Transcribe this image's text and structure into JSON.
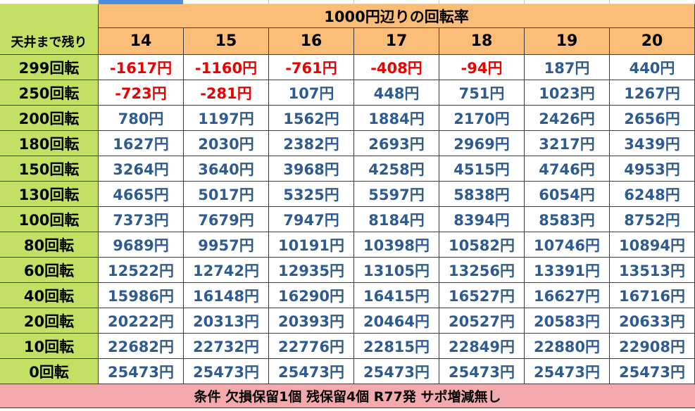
{
  "table": {
    "title": "1000円辺りの回転率",
    "corner_label": "天井まで残り",
    "columns": [
      "14",
      "15",
      "16",
      "17",
      "18",
      "19",
      "20"
    ],
    "rows": [
      {
        "label": "299回転",
        "values": [
          "-1617円",
          "-1160円",
          "-761円",
          "-408円",
          "-94円",
          "187円",
          "440円"
        ]
      },
      {
        "label": "250回転",
        "values": [
          "-723円",
          "-281円",
          "107円",
          "448円",
          "751円",
          "1023円",
          "1267円"
        ]
      },
      {
        "label": "200回転",
        "values": [
          "780円",
          "1197円",
          "1562円",
          "1884円",
          "2170円",
          "2426円",
          "2656円"
        ]
      },
      {
        "label": "180回転",
        "values": [
          "1627円",
          "2030円",
          "2382円",
          "2693円",
          "2969円",
          "3217円",
          "3439円"
        ]
      },
      {
        "label": "150回転",
        "values": [
          "3264円",
          "3640円",
          "3968円",
          "4258円",
          "4515円",
          "4746円",
          "4953円"
        ]
      },
      {
        "label": "130回転",
        "values": [
          "4665円",
          "5017円",
          "5325円",
          "5597円",
          "5838円",
          "6054円",
          "6248円"
        ]
      },
      {
        "label": "100回転",
        "values": [
          "7373円",
          "7679円",
          "7947円",
          "8184円",
          "8394円",
          "8583円",
          "8752円"
        ]
      },
      {
        "label": "80回転",
        "values": [
          "9689円",
          "9957円",
          "10191円",
          "10398円",
          "10582円",
          "10746円",
          "10894円"
        ]
      },
      {
        "label": "60回転",
        "values": [
          "12522円",
          "12742円",
          "12935円",
          "13105円",
          "13256円",
          "13391円",
          "13513円"
        ]
      },
      {
        "label": "40回転",
        "values": [
          "15986円",
          "16148円",
          "16290円",
          "16415円",
          "16527円",
          "16627円",
          "16716円"
        ]
      },
      {
        "label": "20回転",
        "values": [
          "20222円",
          "20313円",
          "20393円",
          "20464円",
          "20527円",
          "20583円",
          "20633円"
        ]
      },
      {
        "label": "10回転",
        "values": [
          "22682円",
          "22732円",
          "22776円",
          "22815円",
          "22849円",
          "22880円",
          "22908円"
        ]
      },
      {
        "label": "0回転",
        "values": [
          "25473円",
          "25473円",
          "25473円",
          "25473円",
          "25473円",
          "25473円",
          "25473円"
        ]
      }
    ],
    "footer": "条件 欠損保留1個 残保留4個 R77発 サポ増減無し"
  },
  "colors": {
    "header_orange": "#f9bd78",
    "rowhead_green": "#c4e064",
    "negative_red": "#ee0000",
    "positive_blue": "#2e5c92",
    "footer_pink": "#f4a9ad"
  }
}
